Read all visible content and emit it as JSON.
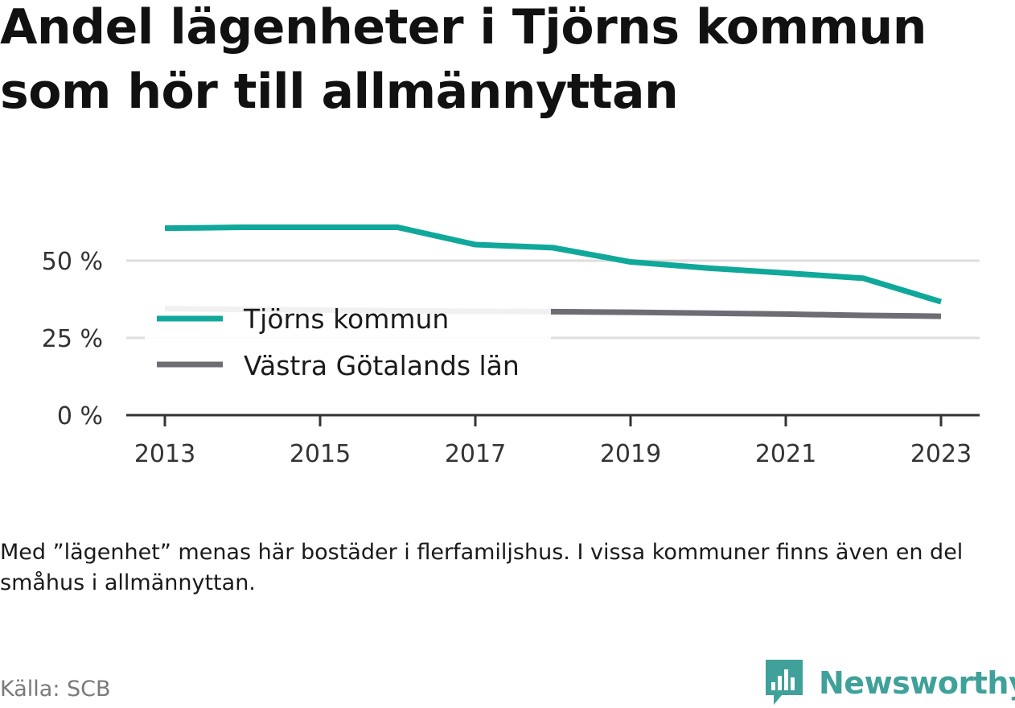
{
  "title": "Andel lägenheter i Tjörns kommun som hör till allmännyttan",
  "note": "Med ”lägenhet” menas här bostäder i flerfamiljshus. I vissa kommuner finns även en del småhus i allmännyttan.",
  "source": "Källa: SCB",
  "logo": {
    "text": "Newsworthy",
    "icon": "bar-chart-speech-bubble-icon",
    "color": "#3fa19a"
  },
  "chart_data": {
    "type": "line",
    "x": [
      2013,
      2014,
      2015,
      2016,
      2017,
      2018,
      2019,
      2020,
      2021,
      2022,
      2023
    ],
    "series": [
      {
        "name": "Tjörns kommun",
        "color": "#10a89a",
        "values": [
          60.5,
          60.8,
          60.8,
          60.8,
          55.2,
          54.2,
          49.6,
          47.6,
          46.0,
          44.3,
          36.7
        ]
      },
      {
        "name": "Västra Götalands län",
        "color": "#6e6d73",
        "values": [
          34.5,
          34.2,
          34.0,
          33.8,
          33.6,
          33.5,
          33.3,
          33.0,
          32.7,
          32.3,
          32.0
        ]
      }
    ],
    "x_ticks": [
      2013,
      2015,
      2017,
      2019,
      2021,
      2023
    ],
    "y_ticks": [
      0,
      25,
      50
    ],
    "y_tick_labels": [
      "0 %",
      "25 %",
      "50 %"
    ],
    "ylim": [
      0,
      70
    ],
    "grid": true,
    "legend_placement": "center-left"
  }
}
